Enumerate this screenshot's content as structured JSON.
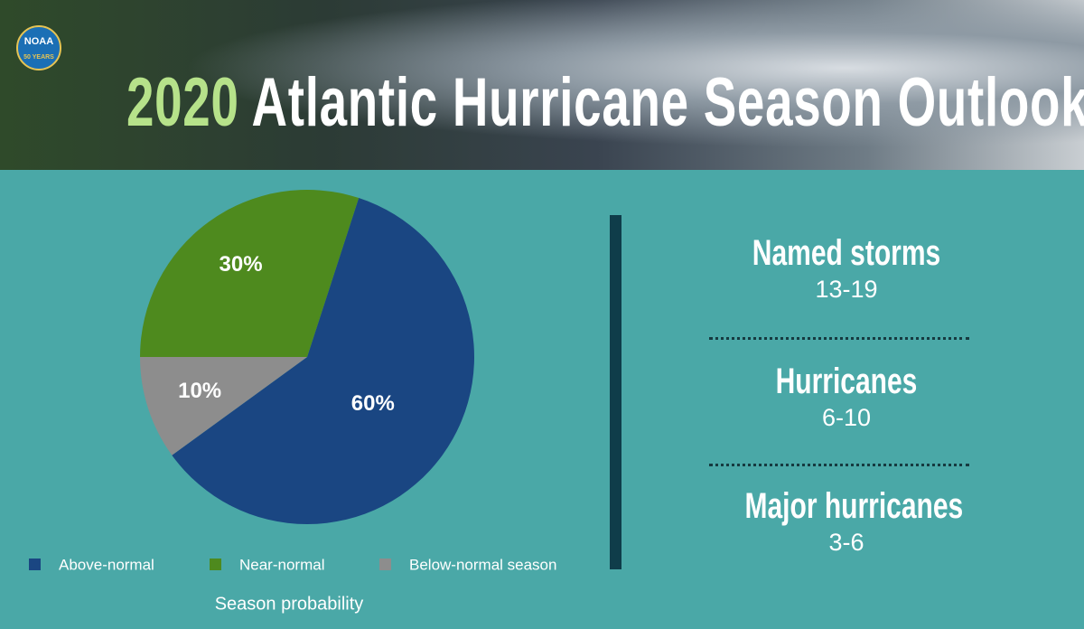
{
  "header": {
    "logo": {
      "text": "NOAA",
      "subtext": "50 YEARS"
    },
    "title_year": "2020",
    "title": "Atlantic Hurricane Season Outlook"
  },
  "chart_data": {
    "type": "pie",
    "categories": [
      "Above-normal",
      "Near-normal",
      "Below-normal season"
    ],
    "values": [
      60,
      30,
      10
    ],
    "value_labels": [
      "60%",
      "30%",
      "10%"
    ],
    "colors": [
      "#1a4682",
      "#4e8a1e",
      "#8d8d8d"
    ],
    "xlabel": "Season probability"
  },
  "outlook": [
    {
      "label": "Named storms",
      "range": "13-19"
    },
    {
      "label": "Hurricanes",
      "range": "6-10"
    },
    {
      "label": "Major hurricanes",
      "range": "3-6"
    }
  ]
}
